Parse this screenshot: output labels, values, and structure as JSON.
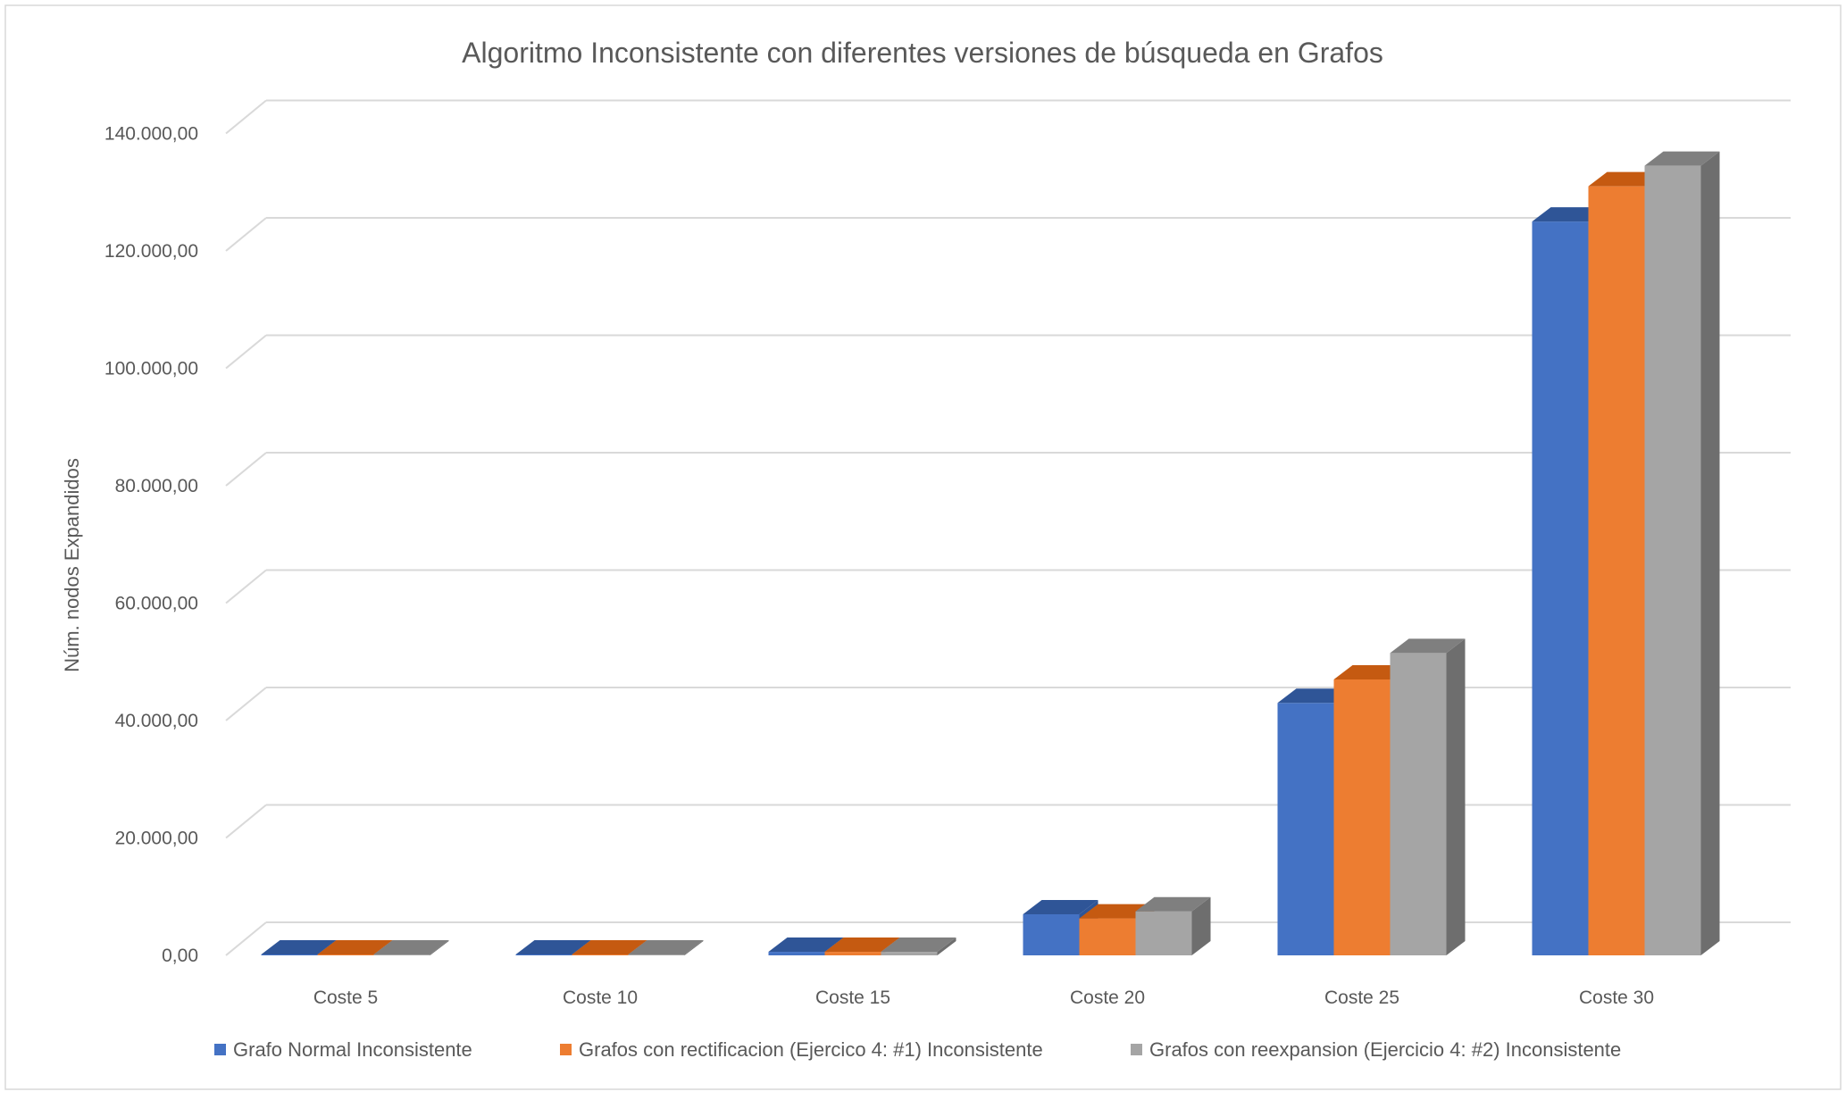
{
  "chart_data": {
    "type": "bar",
    "title": "Algoritmo Inconsistente con diferentes versiones de búsqueda en Grafos",
    "xlabel": "",
    "ylabel": "Núm. nodos Expandidos",
    "ylim": [
      0,
      140000
    ],
    "yticks": [
      0,
      20000,
      40000,
      60000,
      80000,
      100000,
      120000,
      140000
    ],
    "ytick_labels": [
      "0,00",
      "20.000,00",
      "40.000,00",
      "60.000,00",
      "80.000,00",
      "100.000,00",
      "120.000,00",
      "140.000,00"
    ],
    "categories": [
      "Coste 5",
      "Coste 10",
      "Coste 15",
      "Coste 20",
      "Coste 25",
      "Coste 30"
    ],
    "series": [
      {
        "name": "Grafo Normal Inconsistente",
        "color": "#4472C4",
        "top_color": "#2F5597",
        "side_color": "#2F5597",
        "values": [
          20,
          50,
          600,
          7000,
          43000,
          125000
        ]
      },
      {
        "name": "Grafos con rectificacion (Ejercico 4: #1) Inconsistente",
        "color": "#ED7D31",
        "top_color": "#C55A11",
        "side_color": "#C55A11",
        "values": [
          20,
          50,
          600,
          6300,
          47000,
          131000
        ]
      },
      {
        "name": "Grafos con reexpansion (Ejercicio 4: #2) Inconsistente",
        "color": "#A5A5A5",
        "top_color": "#7F7F7F",
        "side_color": "#6E6E6E",
        "values": [
          20,
          50,
          600,
          7500,
          51500,
          134500
        ]
      }
    ],
    "grid": true,
    "legend_position": "bottom",
    "style": "3d-clustered-column"
  }
}
